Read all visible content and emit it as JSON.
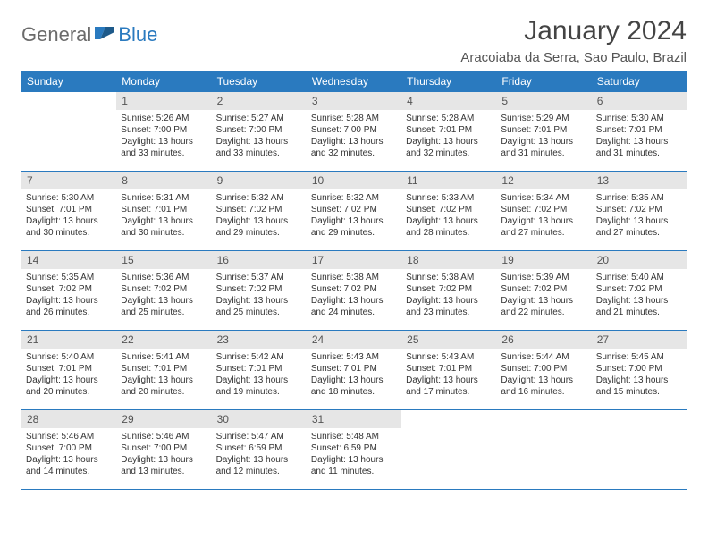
{
  "logo": {
    "part1": "General",
    "part2": "Blue"
  },
  "title": "January 2024",
  "location": "Aracoiaba da Serra, Sao Paulo, Brazil",
  "weekdays": [
    "Sunday",
    "Monday",
    "Tuesday",
    "Wednesday",
    "Thursday",
    "Friday",
    "Saturday"
  ],
  "colors": {
    "header_bg": "#2a7abf",
    "daynum_bg": "#e6e6e6",
    "text": "#333333",
    "logo_gray": "#6b6b6b",
    "logo_blue": "#2a7abf"
  },
  "weeks": [
    [
      {
        "empty": true
      },
      {
        "n": "1",
        "sr": "Sunrise: 5:26 AM",
        "ss": "Sunset: 7:00 PM",
        "dl1": "Daylight: 13 hours",
        "dl2": "and 33 minutes."
      },
      {
        "n": "2",
        "sr": "Sunrise: 5:27 AM",
        "ss": "Sunset: 7:00 PM",
        "dl1": "Daylight: 13 hours",
        "dl2": "and 33 minutes."
      },
      {
        "n": "3",
        "sr": "Sunrise: 5:28 AM",
        "ss": "Sunset: 7:00 PM",
        "dl1": "Daylight: 13 hours",
        "dl2": "and 32 minutes."
      },
      {
        "n": "4",
        "sr": "Sunrise: 5:28 AM",
        "ss": "Sunset: 7:01 PM",
        "dl1": "Daylight: 13 hours",
        "dl2": "and 32 minutes."
      },
      {
        "n": "5",
        "sr": "Sunrise: 5:29 AM",
        "ss": "Sunset: 7:01 PM",
        "dl1": "Daylight: 13 hours",
        "dl2": "and 31 minutes."
      },
      {
        "n": "6",
        "sr": "Sunrise: 5:30 AM",
        "ss": "Sunset: 7:01 PM",
        "dl1": "Daylight: 13 hours",
        "dl2": "and 31 minutes."
      }
    ],
    [
      {
        "n": "7",
        "sr": "Sunrise: 5:30 AM",
        "ss": "Sunset: 7:01 PM",
        "dl1": "Daylight: 13 hours",
        "dl2": "and 30 minutes."
      },
      {
        "n": "8",
        "sr": "Sunrise: 5:31 AM",
        "ss": "Sunset: 7:01 PM",
        "dl1": "Daylight: 13 hours",
        "dl2": "and 30 minutes."
      },
      {
        "n": "9",
        "sr": "Sunrise: 5:32 AM",
        "ss": "Sunset: 7:02 PM",
        "dl1": "Daylight: 13 hours",
        "dl2": "and 29 minutes."
      },
      {
        "n": "10",
        "sr": "Sunrise: 5:32 AM",
        "ss": "Sunset: 7:02 PM",
        "dl1": "Daylight: 13 hours",
        "dl2": "and 29 minutes."
      },
      {
        "n": "11",
        "sr": "Sunrise: 5:33 AM",
        "ss": "Sunset: 7:02 PM",
        "dl1": "Daylight: 13 hours",
        "dl2": "and 28 minutes."
      },
      {
        "n": "12",
        "sr": "Sunrise: 5:34 AM",
        "ss": "Sunset: 7:02 PM",
        "dl1": "Daylight: 13 hours",
        "dl2": "and 27 minutes."
      },
      {
        "n": "13",
        "sr": "Sunrise: 5:35 AM",
        "ss": "Sunset: 7:02 PM",
        "dl1": "Daylight: 13 hours",
        "dl2": "and 27 minutes."
      }
    ],
    [
      {
        "n": "14",
        "sr": "Sunrise: 5:35 AM",
        "ss": "Sunset: 7:02 PM",
        "dl1": "Daylight: 13 hours",
        "dl2": "and 26 minutes."
      },
      {
        "n": "15",
        "sr": "Sunrise: 5:36 AM",
        "ss": "Sunset: 7:02 PM",
        "dl1": "Daylight: 13 hours",
        "dl2": "and 25 minutes."
      },
      {
        "n": "16",
        "sr": "Sunrise: 5:37 AM",
        "ss": "Sunset: 7:02 PM",
        "dl1": "Daylight: 13 hours",
        "dl2": "and 25 minutes."
      },
      {
        "n": "17",
        "sr": "Sunrise: 5:38 AM",
        "ss": "Sunset: 7:02 PM",
        "dl1": "Daylight: 13 hours",
        "dl2": "and 24 minutes."
      },
      {
        "n": "18",
        "sr": "Sunrise: 5:38 AM",
        "ss": "Sunset: 7:02 PM",
        "dl1": "Daylight: 13 hours",
        "dl2": "and 23 minutes."
      },
      {
        "n": "19",
        "sr": "Sunrise: 5:39 AM",
        "ss": "Sunset: 7:02 PM",
        "dl1": "Daylight: 13 hours",
        "dl2": "and 22 minutes."
      },
      {
        "n": "20",
        "sr": "Sunrise: 5:40 AM",
        "ss": "Sunset: 7:02 PM",
        "dl1": "Daylight: 13 hours",
        "dl2": "and 21 minutes."
      }
    ],
    [
      {
        "n": "21",
        "sr": "Sunrise: 5:40 AM",
        "ss": "Sunset: 7:01 PM",
        "dl1": "Daylight: 13 hours",
        "dl2": "and 20 minutes."
      },
      {
        "n": "22",
        "sr": "Sunrise: 5:41 AM",
        "ss": "Sunset: 7:01 PM",
        "dl1": "Daylight: 13 hours",
        "dl2": "and 20 minutes."
      },
      {
        "n": "23",
        "sr": "Sunrise: 5:42 AM",
        "ss": "Sunset: 7:01 PM",
        "dl1": "Daylight: 13 hours",
        "dl2": "and 19 minutes."
      },
      {
        "n": "24",
        "sr": "Sunrise: 5:43 AM",
        "ss": "Sunset: 7:01 PM",
        "dl1": "Daylight: 13 hours",
        "dl2": "and 18 minutes."
      },
      {
        "n": "25",
        "sr": "Sunrise: 5:43 AM",
        "ss": "Sunset: 7:01 PM",
        "dl1": "Daylight: 13 hours",
        "dl2": "and 17 minutes."
      },
      {
        "n": "26",
        "sr": "Sunrise: 5:44 AM",
        "ss": "Sunset: 7:00 PM",
        "dl1": "Daylight: 13 hours",
        "dl2": "and 16 minutes."
      },
      {
        "n": "27",
        "sr": "Sunrise: 5:45 AM",
        "ss": "Sunset: 7:00 PM",
        "dl1": "Daylight: 13 hours",
        "dl2": "and 15 minutes."
      }
    ],
    [
      {
        "n": "28",
        "sr": "Sunrise: 5:46 AM",
        "ss": "Sunset: 7:00 PM",
        "dl1": "Daylight: 13 hours",
        "dl2": "and 14 minutes."
      },
      {
        "n": "29",
        "sr": "Sunrise: 5:46 AM",
        "ss": "Sunset: 7:00 PM",
        "dl1": "Daylight: 13 hours",
        "dl2": "and 13 minutes."
      },
      {
        "n": "30",
        "sr": "Sunrise: 5:47 AM",
        "ss": "Sunset: 6:59 PM",
        "dl1": "Daylight: 13 hours",
        "dl2": "and 12 minutes."
      },
      {
        "n": "31",
        "sr": "Sunrise: 5:48 AM",
        "ss": "Sunset: 6:59 PM",
        "dl1": "Daylight: 13 hours",
        "dl2": "and 11 minutes."
      },
      {
        "empty": true
      },
      {
        "empty": true
      },
      {
        "empty": true
      }
    ]
  ]
}
